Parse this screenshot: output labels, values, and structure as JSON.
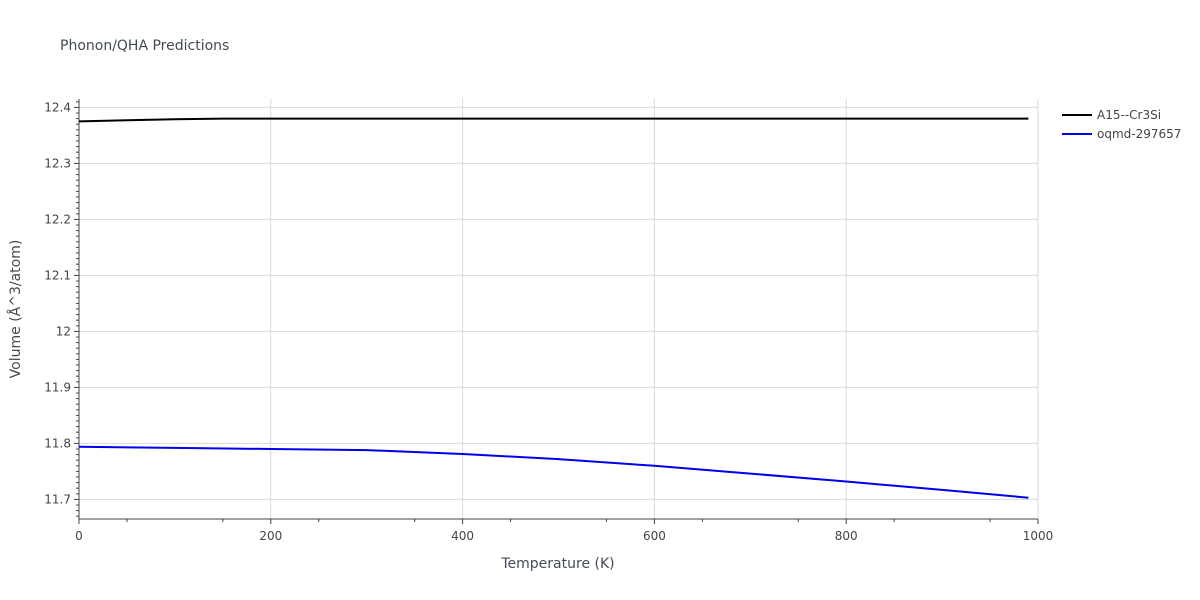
{
  "chart_data": {
    "type": "line",
    "title": "Phonon/QHA Predictions",
    "xlabel": "Temperature (K)",
    "ylabel": "Volume (Å^3/atom)",
    "xlim": [
      0,
      1000
    ],
    "ylim": [
      11.665,
      12.415
    ],
    "x_ticks": [
      0,
      200,
      400,
      600,
      800,
      1000
    ],
    "y_ticks": [
      11.7,
      11.8,
      11.9,
      12,
      12.1,
      12.2,
      12.3,
      12.4
    ],
    "x_tick_labels": [
      "0",
      "200",
      "400",
      "600",
      "800",
      "1000"
    ],
    "y_tick_labels": [
      "11.7",
      "11.8",
      "11.9",
      "12",
      "12.1",
      "12.2",
      "12.3",
      "12.4"
    ],
    "grid": true,
    "legend_position": "top-right",
    "series": [
      {
        "name": "A15--Cr3Si",
        "color": "#000000",
        "x": [
          0,
          50,
          100,
          150,
          200,
          300,
          400,
          500,
          600,
          700,
          800,
          900,
          990
        ],
        "y": [
          12.375,
          12.377,
          12.379,
          12.38,
          12.38,
          12.38,
          12.38,
          12.38,
          12.38,
          12.38,
          12.38,
          12.38,
          12.38
        ]
      },
      {
        "name": "oqmd-297657",
        "color": "#0000ee",
        "x": [
          0,
          100,
          200,
          300,
          400,
          500,
          600,
          700,
          800,
          900,
          990
        ],
        "y": [
          11.794,
          11.792,
          11.79,
          11.788,
          11.781,
          11.772,
          11.76,
          11.746,
          11.732,
          11.717,
          11.703
        ]
      }
    ]
  }
}
